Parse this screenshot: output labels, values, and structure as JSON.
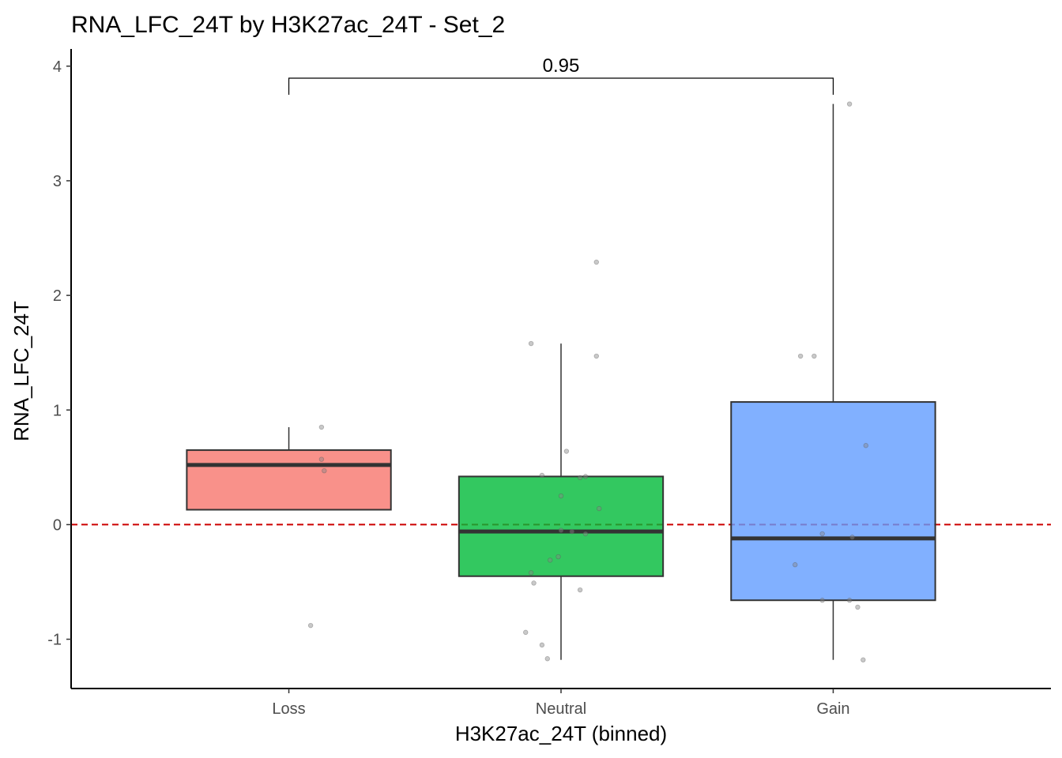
{
  "chart_data": {
    "type": "box",
    "title": "RNA_LFC_24T by H3K27ac_24T - Set_2",
    "xlabel": "H3K27ac_24T (binned)",
    "ylabel": "RNA_LFC_24T",
    "ylim": [
      -1.43,
      4.15
    ],
    "yticks": [
      -1,
      0,
      1,
      2,
      3,
      4
    ],
    "categories": [
      "Loss",
      "Neutral",
      "Gain"
    ],
    "colors": [
      "#f8766d",
      "#00ba38",
      "#619cff"
    ],
    "reference_line": {
      "y": 0,
      "color": "#cc0000",
      "style": "dashed"
    },
    "comparison": {
      "groups": [
        "Loss",
        "Gain"
      ],
      "label": "0.95"
    },
    "boxes": [
      {
        "name": "Loss",
        "min": 0.13,
        "q1": 0.13,
        "median": 0.52,
        "q3": 0.65,
        "max": 0.85
      },
      {
        "name": "Neutral",
        "min": -1.18,
        "q1": -0.45,
        "median": -0.06,
        "q3": 0.42,
        "max": 1.58
      },
      {
        "name": "Gain",
        "min": -1.18,
        "q1": -0.66,
        "median": -0.12,
        "q3": 1.07,
        "max": 3.67
      }
    ],
    "points": [
      {
        "group": "Loss",
        "values": [
          0.85,
          0.57,
          0.47,
          -0.88
        ],
        "jitter": [
          0.12,
          0.12,
          0.13,
          0.08
        ]
      },
      {
        "group": "Neutral",
        "values": [
          2.29,
          1.58,
          1.47,
          0.64,
          0.43,
          0.41,
          0.42,
          0.25,
          0.14,
          -0.05,
          -0.06,
          -0.08,
          -0.28,
          -0.31,
          -0.42,
          -0.51,
          -0.57,
          -0.94,
          -1.05,
          -1.17
        ],
        "jitter": [
          0.13,
          -0.11,
          0.13,
          0.02,
          -0.07,
          0.07,
          0.09,
          0.0,
          0.14,
          0.0,
          0.04,
          0.09,
          -0.01,
          -0.04,
          -0.11,
          -0.1,
          0.07,
          -0.13,
          -0.07,
          -0.05
        ]
      },
      {
        "group": "Gain",
        "values": [
          3.67,
          1.47,
          1.47,
          0.69,
          -0.08,
          -0.11,
          -0.35,
          -0.66,
          -0.66,
          -0.72,
          -1.18
        ],
        "jitter": [
          0.06,
          -0.12,
          -0.07,
          0.12,
          -0.04,
          0.07,
          -0.14,
          -0.04,
          0.06,
          0.09,
          0.11
        ]
      }
    ],
    "grid": false,
    "legend": "none"
  }
}
